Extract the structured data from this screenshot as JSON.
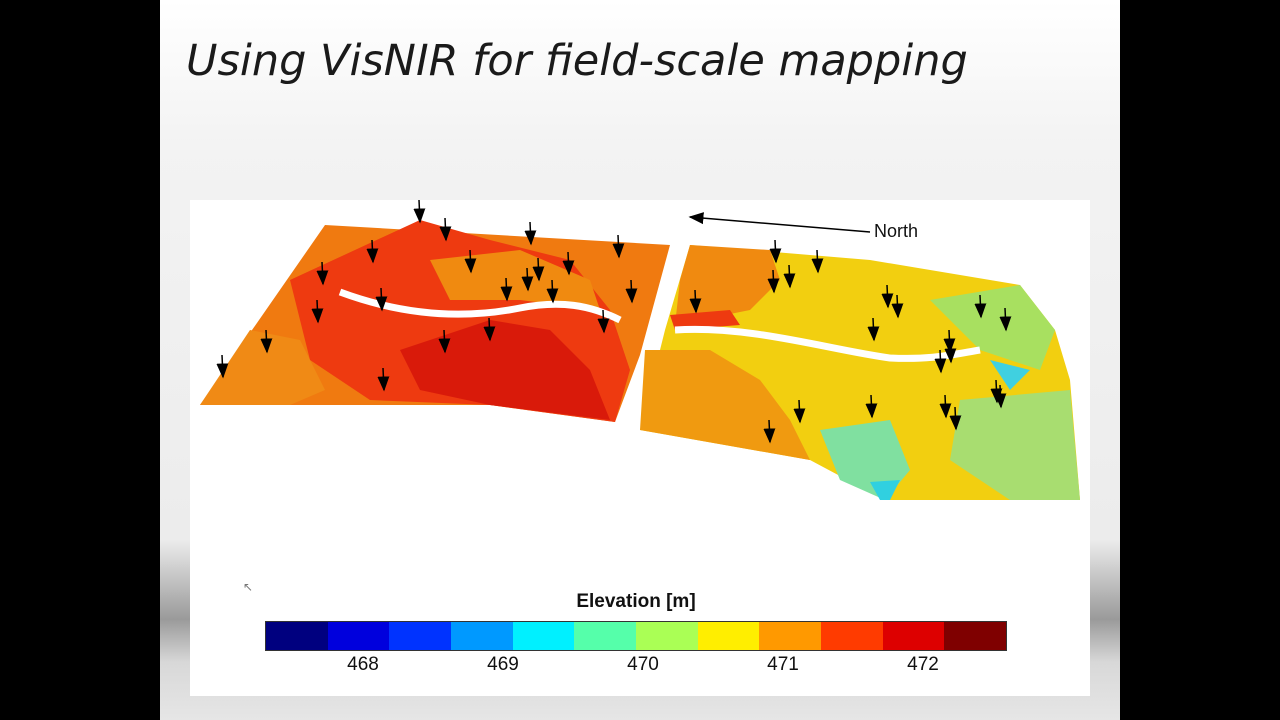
{
  "slide": {
    "title": "Using VisNIR for field-scale mapping"
  },
  "figure": {
    "north_label": "North",
    "colorbar": {
      "title": "Elevation [m]",
      "colors": [
        "#00007f",
        "#0000dd",
        "#0033ff",
        "#0099ff",
        "#00f0ff",
        "#55ffaa",
        "#aaff55",
        "#ffee00",
        "#ff9900",
        "#ff3b00",
        "#dd0000",
        "#7f0000"
      ],
      "ticks": [
        "468",
        "469",
        "470",
        "471",
        "472"
      ],
      "range": [
        467.3,
        472.6
      ]
    }
  }
}
